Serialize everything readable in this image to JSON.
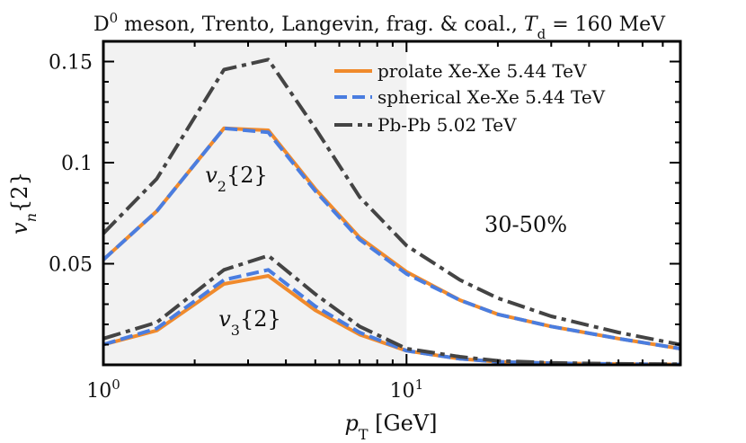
{
  "chart_data": {
    "type": "line",
    "title": "D⁰ meson, Trento, Langevin, frag. & coal., T_d = 160 MeV",
    "title_parts": {
      "a": "D",
      "a_sup": "0",
      "b": " meson, Trento, Langevin, frag. & coal., ",
      "c": "T",
      "c_sub": "d",
      "d": " = 160 MeV"
    },
    "xlabel": "p_T [GeV]",
    "xlabel_parts": {
      "main": "p",
      "sub": "T",
      "rest": " [GeV]"
    },
    "ylabel": "v_n{2}",
    "ylabel_parts": {
      "main": "v",
      "sub": "n",
      "rest": "{2}"
    },
    "x_scale": "log",
    "xlim": [
      1,
      80
    ],
    "ylim": [
      0.0,
      0.16
    ],
    "x_ticks": [
      {
        "value": 1,
        "base": "10",
        "exp": "0"
      },
      {
        "value": 10,
        "base": "10",
        "exp": "1"
      }
    ],
    "y_ticks": [
      {
        "value": 0.05,
        "label": "0.05"
      },
      {
        "value": 0.1,
        "label": "0.1"
      },
      {
        "value": 0.15,
        "label": "0.15"
      }
    ],
    "shaded_region": {
      "x_from": 1,
      "x_to": 10,
      "color": "#f2f2f2"
    },
    "legend": {
      "placement": "top-right"
    },
    "annotations": [
      {
        "text": "30-50%"
      },
      {
        "main": "v",
        "sub": "2",
        "rest": "{2}"
      },
      {
        "main": "v",
        "sub": "3",
        "rest": "{2}"
      }
    ],
    "series": [
      {
        "name": "prolate Xe-Xe 5.44 TeV",
        "color": "#f08a2c",
        "style": "solid",
        "harmonic": "v2",
        "x": [
          1,
          1.5,
          2.5,
          3.5,
          5,
          7,
          10,
          15,
          20,
          30,
          50,
          80
        ],
        "y": [
          0.052,
          0.076,
          0.117,
          0.116,
          0.087,
          0.063,
          0.046,
          0.032,
          0.025,
          0.019,
          0.013,
          0.008
        ]
      },
      {
        "name": "spherical Xe-Xe 5.44 TeV",
        "color": "#4a7de0",
        "style": "dashed",
        "harmonic": "v2",
        "x": [
          1,
          1.5,
          2.5,
          3.5,
          5,
          7,
          10,
          15,
          20,
          30,
          50,
          80
        ],
        "y": [
          0.052,
          0.076,
          0.117,
          0.115,
          0.086,
          0.062,
          0.045,
          0.032,
          0.025,
          0.019,
          0.013,
          0.008
        ]
      },
      {
        "name": "Pb-Pb 5.02 TeV",
        "color": "#444444",
        "style": "dashdot",
        "harmonic": "v2",
        "x": [
          1,
          1.5,
          2.5,
          3.5,
          5,
          7,
          10,
          15,
          20,
          30,
          50,
          80
        ],
        "y": [
          0.065,
          0.092,
          0.146,
          0.151,
          0.117,
          0.083,
          0.059,
          0.042,
          0.033,
          0.024,
          0.016,
          0.01
        ]
      },
      {
        "name": "",
        "color": "#f08a2c",
        "style": "solid",
        "harmonic": "v3",
        "x": [
          1,
          1.5,
          2.5,
          3.5,
          5,
          7,
          10,
          15,
          20,
          30,
          50,
          80
        ],
        "y": [
          0.01,
          0.017,
          0.04,
          0.044,
          0.027,
          0.015,
          0.007,
          0.003,
          0.0015,
          0.0008,
          0.0004,
          0.0002
        ]
      },
      {
        "name": "",
        "color": "#4a7de0",
        "style": "dashed",
        "harmonic": "v3",
        "x": [
          1,
          1.5,
          2.5,
          3.5,
          5,
          7,
          10,
          15,
          20,
          30,
          50,
          80
        ],
        "y": [
          0.01,
          0.018,
          0.042,
          0.047,
          0.029,
          0.016,
          0.007,
          0.003,
          0.0015,
          0.0008,
          0.0004,
          0.0002
        ]
      },
      {
        "name": "",
        "color": "#444444",
        "style": "dashdot",
        "harmonic": "v3",
        "x": [
          1,
          1.5,
          2.5,
          3.5,
          5,
          7,
          10,
          15,
          20,
          30,
          50,
          80
        ],
        "y": [
          0.013,
          0.021,
          0.047,
          0.054,
          0.035,
          0.019,
          0.008,
          0.004,
          0.002,
          0.001,
          0.0005,
          0.0003
        ]
      }
    ]
  }
}
